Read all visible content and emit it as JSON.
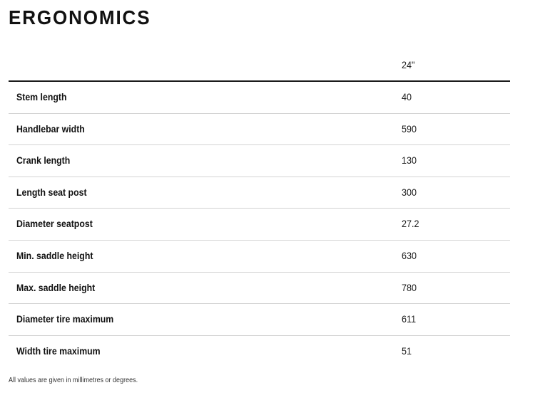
{
  "title": "ERGONOMICS",
  "table": {
    "size_header": "24\"",
    "rows": [
      {
        "label": "Stem length",
        "value": "40"
      },
      {
        "label": "Handlebar width",
        "value": "590"
      },
      {
        "label": "Crank length",
        "value": "130"
      },
      {
        "label": "Length seat post",
        "value": "300"
      },
      {
        "label": "Diameter seatpost",
        "value": "27.2"
      },
      {
        "label": "Min. saddle height",
        "value": "630"
      },
      {
        "label": "Max. saddle height",
        "value": "780"
      },
      {
        "label": "Diameter tire maximum",
        "value": "611"
      },
      {
        "label": "Width tire maximum",
        "value": "51"
      }
    ]
  },
  "footnote": "All values are given in millimetres or degrees."
}
